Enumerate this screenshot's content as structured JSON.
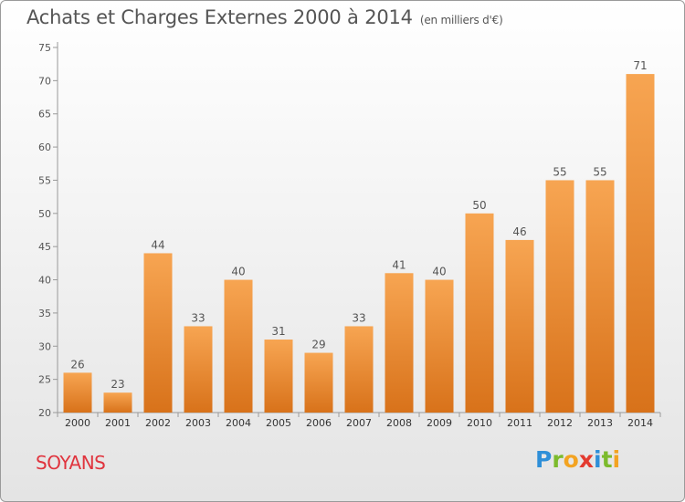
{
  "title": "Achats et Charges Externes 2000 à 2014",
  "subtitle": "(en milliers d'€)",
  "commune": "SOYANS",
  "logo": {
    "letters": [
      "P",
      "r",
      "o",
      "x",
      "i",
      "t",
      "i"
    ],
    "colors": [
      "#2f8fd8",
      "#7cbb2c",
      "#f3a321",
      "#e33a2f",
      "#2f8fd8",
      "#7cbb2c",
      "#f3a321"
    ]
  },
  "chart_data": {
    "type": "bar",
    "categories": [
      "2000",
      "2001",
      "2002",
      "2003",
      "2004",
      "2005",
      "2006",
      "2007",
      "2008",
      "2009",
      "2010",
      "2011",
      "2012",
      "2013",
      "2014"
    ],
    "values": [
      26,
      23,
      44,
      33,
      40,
      31,
      29,
      33,
      41,
      40,
      50,
      46,
      55,
      55,
      71
    ],
    "ylim": [
      20,
      75
    ],
    "yticks": [
      20,
      25,
      30,
      35,
      40,
      45,
      50,
      55,
      60,
      65,
      70,
      75
    ],
    "grid": false,
    "colors": {
      "bar_top": "#f7a552",
      "bar_bottom": "#d8721a",
      "axis": "#999999",
      "text": "#555555"
    }
  }
}
